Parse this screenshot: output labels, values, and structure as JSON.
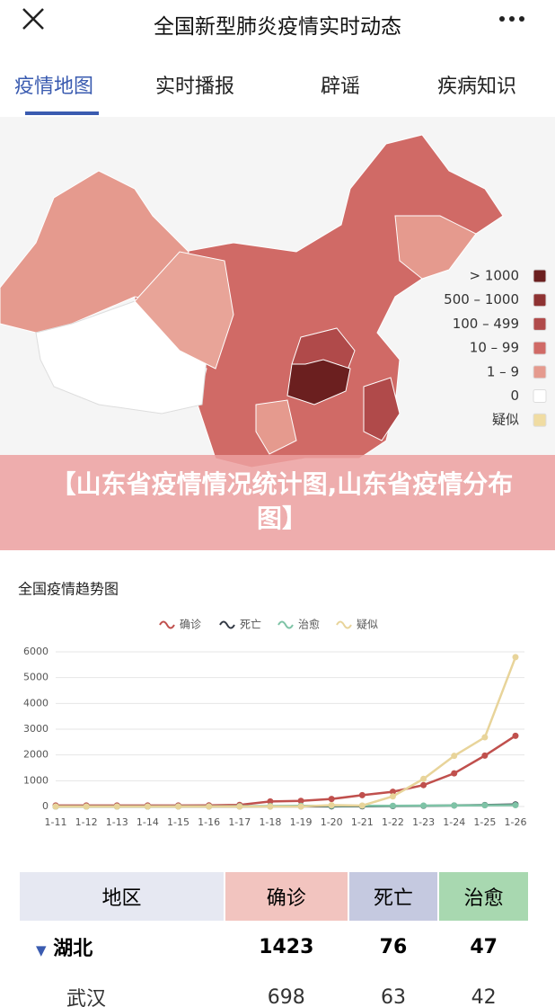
{
  "header": {
    "title": "全国新型肺炎疫情实时动态"
  },
  "tabs": [
    "疫情地图",
    "实时播报",
    "辟谣",
    "疾病知识"
  ],
  "map_legend": [
    {
      "label": "> 1000",
      "color": "#6b1f1f"
    },
    {
      "label": "500 – 1000",
      "color": "#8e3232"
    },
    {
      "label": "100 – 499",
      "color": "#b04a4a"
    },
    {
      "label": "10 – 99",
      "color": "#d06a66"
    },
    {
      "label": "1 – 9",
      "color": "#e59a8e"
    },
    {
      "label": "0",
      "color": "#ffffff"
    },
    {
      "label": "疑似",
      "color": "#f0dca2"
    }
  ],
  "banner": "【山东省疫情情况统计图,山东省疫情分布图】",
  "chart_data": {
    "type": "line",
    "title": "全国疫情趋势图",
    "categories": [
      "1-11",
      "1-12",
      "1-13",
      "1-14",
      "1-15",
      "1-16",
      "1-17",
      "1-18",
      "1-19",
      "1-20",
      "1-21",
      "1-22",
      "1-23",
      "1-24",
      "1-25",
      "1-26"
    ],
    "series": [
      {
        "name": "确诊",
        "color": "#c0504d",
        "values": [
          41,
          41,
          41,
          41,
          41,
          45,
          62,
          198,
          218,
          291,
          440,
          571,
          830,
          1287,
          1975,
          2744
        ]
      },
      {
        "name": "死亡",
        "color": "#333a45",
        "values": [
          1,
          1,
          1,
          1,
          2,
          2,
          2,
          3,
          3,
          6,
          9,
          17,
          25,
          41,
          56,
          80
        ]
      },
      {
        "name": "治愈",
        "color": "#7ec3a6",
        "values": [
          0,
          0,
          0,
          0,
          5,
          5,
          12,
          17,
          25,
          25,
          25,
          28,
          34,
          38,
          49,
          51
        ]
      },
      {
        "name": "疑似",
        "color": "#e8d49a",
        "values": [
          0,
          0,
          0,
          0,
          0,
          0,
          0,
          0,
          0,
          54,
          37,
          393,
          1072,
          1965,
          2684,
          5794
        ]
      }
    ],
    "ylim": [
      0,
      6000
    ],
    "yticks": [
      0,
      1000,
      2000,
      3000,
      4000,
      5000,
      6000
    ],
    "grid": true
  },
  "table": {
    "header": [
      "地区",
      "确诊",
      "死亡",
      "治愈"
    ],
    "rows": [
      [
        "湖北",
        "1423",
        "76",
        "47"
      ],
      [
        "武汉",
        "698",
        "63",
        "42"
      ]
    ]
  }
}
